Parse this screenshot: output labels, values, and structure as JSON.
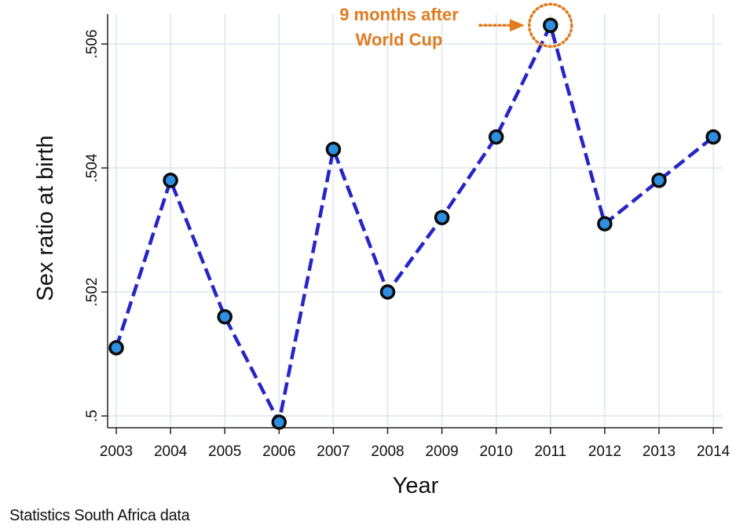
{
  "chart_data": {
    "type": "line",
    "xlabel": "Year",
    "ylabel": "Sex ratio at birth",
    "x": [
      2003,
      2004,
      2005,
      2006,
      2007,
      2008,
      2009,
      2010,
      2011,
      2012,
      2013,
      2014
    ],
    "series": [
      {
        "values": [
          0.5011,
          0.5038,
          0.5016,
          0.4999,
          0.5043,
          0.502,
          0.5032,
          0.5045,
          0.5063,
          0.5031,
          0.5038,
          0.5045
        ]
      }
    ],
    "xlim": [
      2003,
      2014
    ],
    "ylim": [
      0.5,
      0.5063
    ],
    "y_ticks": [
      0.5,
      0.502,
      0.504,
      0.506
    ],
    "y_tick_labels": [
      ".5",
      ".502",
      ".504",
      ".506"
    ],
    "x_tick_labels": [
      "2003",
      "2004",
      "2005",
      "2006",
      "2007",
      "2008",
      "2009",
      "2010",
      "2011",
      "2012",
      "2013",
      "2014"
    ],
    "grid": true,
    "line_style": "dashed",
    "colors": {
      "line": "#2525C8",
      "marker_fill": "#2E8FE0",
      "marker_edge": "#0A0A0A",
      "annotation": "#E07B20",
      "grid": "#DCE6EE"
    },
    "annotation": {
      "text_line1": "9 months after",
      "text_line2": "World Cup",
      "x": 2011,
      "y": 0.5063
    }
  },
  "source_note": "Statistics South Africa data"
}
